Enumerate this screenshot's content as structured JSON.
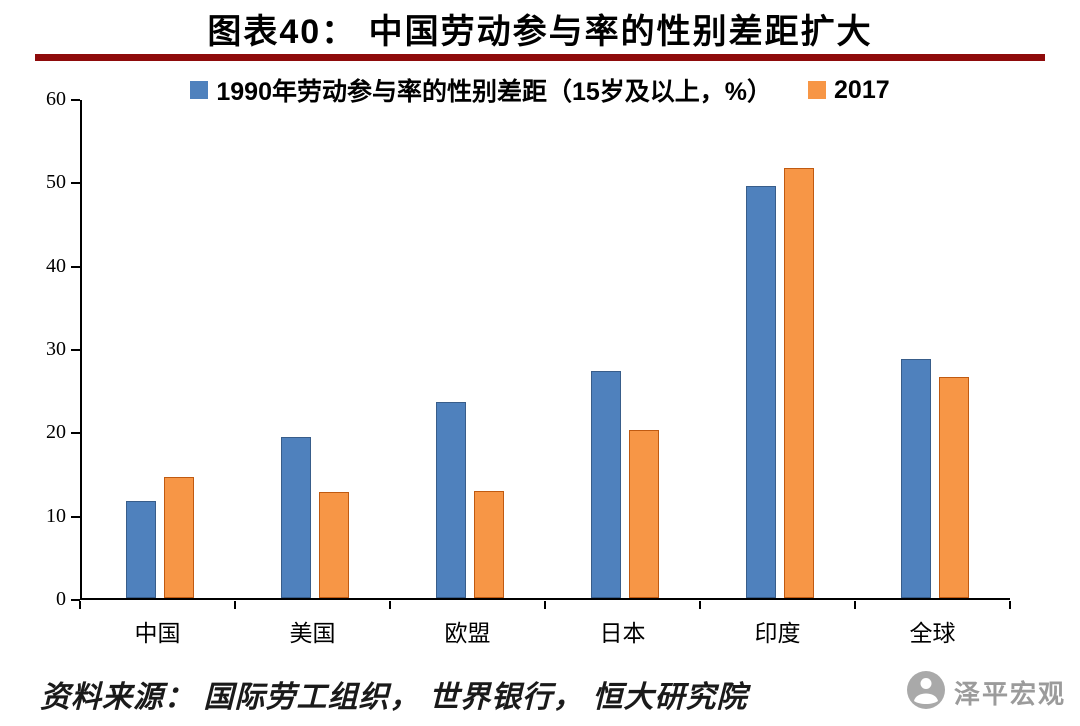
{
  "title": "图表40： 中国劳动参与率的性别差距扩大",
  "source_text": "资料来源： 国际劳工组织， 世界银行， 恒大研究院",
  "watermark": {
    "label": "泽平宏观",
    "logo": "person-badge-icon"
  },
  "colors": {
    "title_rule": "#8E0B0B",
    "axis": "#000000",
    "series_1990_fill": "#4F81BD",
    "series_1990_border": "#385D8A",
    "series_2017_fill": "#F79646",
    "series_2017_border": "#C05A11",
    "watermark_gray": "#9B9B9B"
  },
  "chart_data": {
    "type": "bar",
    "title": "图表40： 中国劳动参与率的性别差距扩大",
    "categories": [
      "中国",
      "美国",
      "欧盟",
      "日本",
      "印度",
      "全球"
    ],
    "series": [
      {
        "name": "1990年劳动参与率的性别差距（15岁及以上，%）",
        "color": "#4F81BD",
        "border": "#385D8A",
        "values": [
          11.7,
          19.3,
          23.5,
          27.3,
          49.5,
          28.7
        ]
      },
      {
        "name": "2017",
        "color": "#F79646",
        "border": "#C05A11",
        "values": [
          14.5,
          12.7,
          12.9,
          20.2,
          51.6,
          26.5
        ]
      }
    ],
    "xlabel": "",
    "ylabel": "",
    "ylim": [
      0,
      60
    ],
    "yticks": [
      0,
      10,
      20,
      30,
      40,
      50,
      60
    ],
    "legend_position": "top",
    "grid": false
  }
}
